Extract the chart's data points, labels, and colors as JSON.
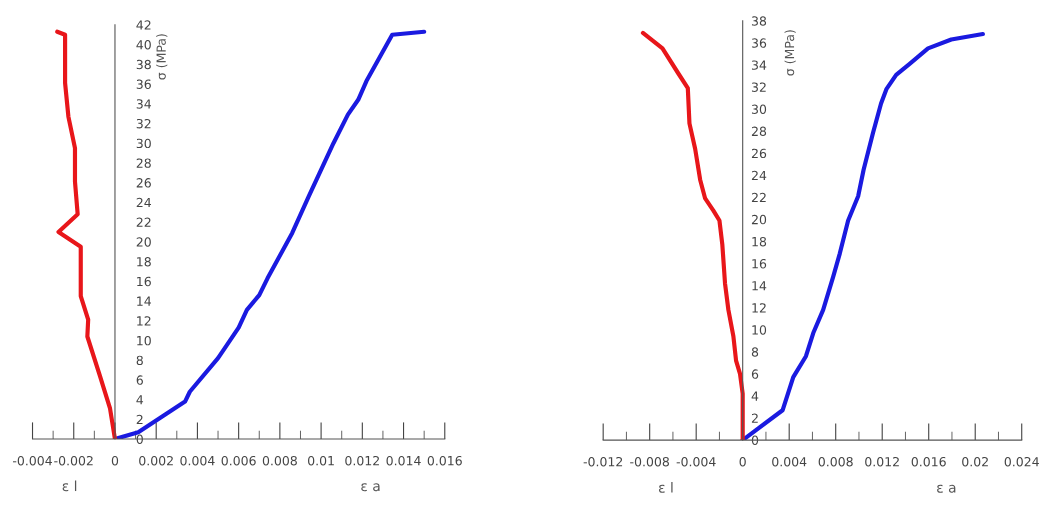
{
  "chart_data": [
    {
      "type": "line",
      "ylabel": "σ (MPa)",
      "annotations": [
        "ε l",
        "ε a"
      ],
      "xlim": [
        -0.004,
        0.016
      ],
      "xticks": [
        -0.004,
        -0.002,
        0,
        0.002,
        0.004,
        0.006,
        0.008,
        0.01,
        0.012,
        0.014,
        0.016
      ],
      "ylim": [
        0,
        42
      ],
      "yticks": [
        0,
        2,
        4,
        6,
        8,
        10,
        12,
        14,
        16,
        18,
        20,
        22,
        24,
        26,
        28,
        30,
        32,
        34,
        36,
        38,
        40,
        42
      ],
      "grid": false,
      "legend": false,
      "marker": "none",
      "line_style": "solid",
      "series": [
        {
          "color": "#1a1ae0",
          "x": [
            0,
            0.00113,
            0.0034,
            0.00363,
            0.005,
            0.006,
            0.0064,
            0.007,
            0.0074,
            0.0086,
            0.0094,
            0.0106,
            0.0113,
            0.0118,
            0.0122,
            0.01345,
            0.015
          ],
          "values": [
            0,
            0.7,
            3.8,
            4.8,
            8.2,
            11.3,
            13.1,
            14.6,
            16.3,
            20.9,
            24.6,
            30,
            32.9,
            34.4,
            36.3,
            41,
            41.3
          ]
        },
        {
          "color": "#e8161a",
          "x": [
            0,
            -0.00024,
            -0.00073,
            -0.00134,
            -0.0013,
            -0.00166,
            -0.00166,
            -0.00274,
            -0.00181,
            -0.00194,
            -0.00194,
            -0.00226,
            -0.00242,
            -0.00242,
            -0.0028
          ],
          "values": [
            0,
            3.1,
            6.4,
            10.4,
            12.1,
            14.5,
            19.5,
            21,
            22.8,
            26.1,
            29.5,
            32.7,
            36.1,
            41,
            41.3
          ]
        }
      ]
    },
    {
      "type": "line",
      "ylabel": "σ (MPa)",
      "annotations": [
        "ε l",
        "ε a"
      ],
      "xlim": [
        -0.012,
        0.024
      ],
      "xticks": [
        -0.012,
        -0.008,
        -0.004,
        0,
        0.004,
        0.008,
        0.012,
        0.016,
        0.02,
        0.024
      ],
      "ylim": [
        0,
        38
      ],
      "yticks": [
        0,
        2,
        4,
        6,
        8,
        10,
        12,
        14,
        16,
        18,
        20,
        22,
        24,
        26,
        28,
        30,
        32,
        34,
        36,
        38
      ],
      "grid": false,
      "legend": false,
      "marker": "none",
      "line_style": "solid",
      "series": [
        {
          "color": "#1a1ae0",
          "x": [
            0,
            0.00343,
            0.00435,
            0.00544,
            0.00607,
            0.00692,
            0.00778,
            0.00835,
            0.00907,
            0.00993,
            0.0104,
            0.0112,
            0.0119,
            0.01236,
            0.0132,
            0.01436,
            0.01594,
            0.01794,
            0.02066
          ],
          "values": [
            0,
            2.7,
            5.7,
            7.6,
            9.7,
            11.8,
            14.8,
            16.9,
            19.9,
            22.1,
            24.5,
            27.8,
            30.5,
            31.8,
            33.1,
            34.1,
            35.5,
            36.3,
            36.8
          ]
        },
        {
          "color": "#e8161a",
          "x": [
            0,
            0,
            -0.00023,
            -0.00057,
            -0.0008,
            -0.00123,
            -0.00152,
            -0.00175,
            -0.002,
            -0.00252,
            -0.00323,
            -0.00366,
            -0.00409,
            -0.00458,
            -0.00472,
            -0.00552,
            -0.0069,
            -0.00858
          ],
          "values": [
            0,
            4.2,
            6,
            7.2,
            9.4,
            11.8,
            14.2,
            17.7,
            19.9,
            20.8,
            21.9,
            23.6,
            26.4,
            28.7,
            31.9,
            33.2,
            35.5,
            36.9
          ]
        }
      ]
    }
  ]
}
